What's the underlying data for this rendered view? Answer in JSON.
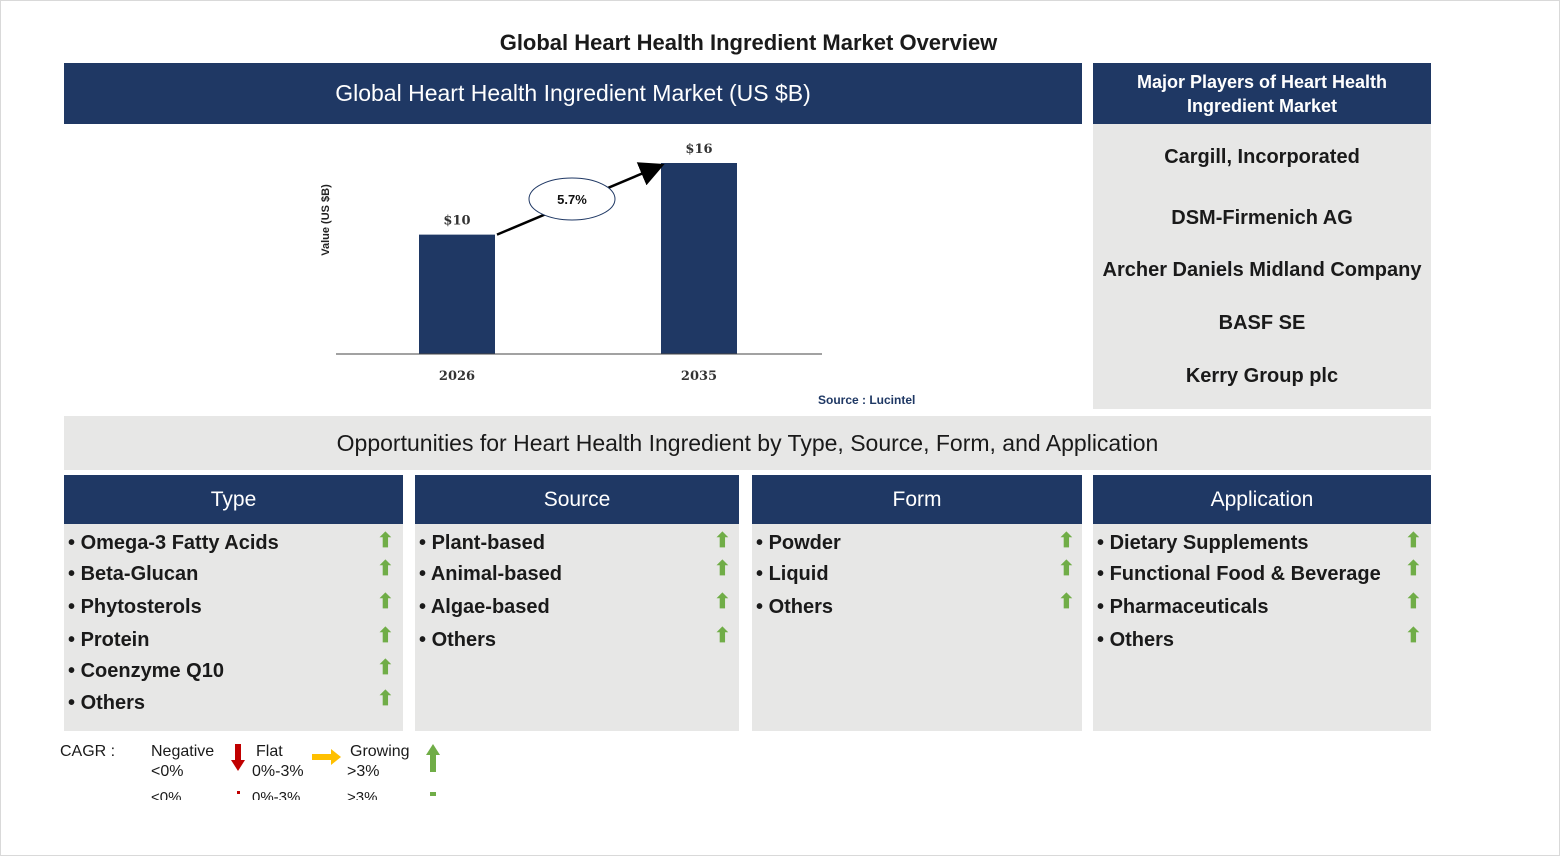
{
  "title": "Global Heart Health Ingredient Market Overview",
  "chart_panel": {
    "header": "Global Heart Health Ingredient Market (US $B)",
    "source": "Source : Lucintel"
  },
  "chart_data": {
    "type": "bar",
    "categories": [
      "2026",
      "2035"
    ],
    "values": [
      10,
      16
    ],
    "value_labels": [
      "$10",
      "$16"
    ],
    "ylabel": "Value (US $B)",
    "ylim": [
      0,
      16
    ],
    "cagr_label": "5.7%",
    "bar_color": "#1f3864",
    "grid": false
  },
  "players": {
    "header": "Major Players of Heart Health Ingredient Market",
    "items": [
      "Cargill, Incorporated",
      "DSM-Firmenich AG",
      "Archer Daniels Midland Company",
      "BASF SE",
      "Kerry Group plc"
    ]
  },
  "opportunities": {
    "banner": "Opportunities for Heart Health Ingredient by Type, Source, Form, and Application",
    "columns": [
      {
        "title": "Type",
        "items": [
          "Omega-3 Fatty Acids",
          "Beta-Glucan",
          "Phytosterols",
          "Protein",
          "Coenzyme Q10",
          "Others"
        ]
      },
      {
        "title": "Source",
        "items": [
          "Plant-based",
          "Animal-based",
          "Algae-based",
          "Others"
        ]
      },
      {
        "title": "Form",
        "items": [
          "Powder",
          "Liquid",
          "Others"
        ]
      },
      {
        "title": "Application",
        "items": [
          "Dietary Supplements",
          "Functional Food & Beverage",
          "Pharmaceuticals",
          "Others"
        ]
      }
    ],
    "trend": "growing"
  },
  "legend": {
    "label": "CAGR :",
    "negative": {
      "name": "Negative",
      "range": "<0%",
      "color": "#c00000"
    },
    "flat": {
      "name": "Flat",
      "range": "0%-3%",
      "color": "#ffc000"
    },
    "growing": {
      "name": "Growing",
      "range": ">3%",
      "color": "#70ad47"
    }
  },
  "colors": {
    "navy": "#1f3864",
    "panel_grey": "#e7e7e6",
    "growth_green": "#70ad47"
  }
}
